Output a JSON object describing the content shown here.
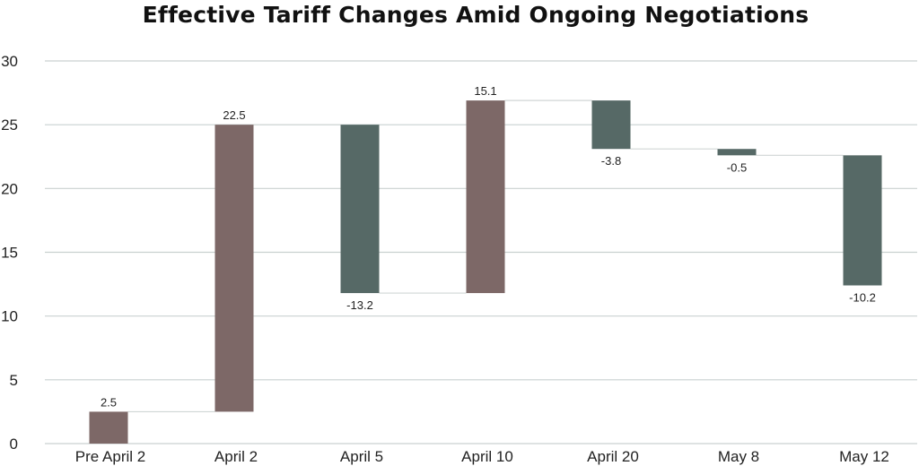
{
  "chart_data": {
    "type": "waterfall",
    "title": "Effective Tariff Changes Amid Ongoing Negotiations",
    "xlabel": "",
    "ylabel": "",
    "ylim": [
      0,
      30
    ],
    "yticks": [
      0,
      5,
      10,
      15,
      20,
      25,
      30
    ],
    "categories": [
      "Pre April 2",
      "April 2",
      "April 5",
      "April 10",
      "April 20",
      "May 8",
      "May 12"
    ],
    "values": [
      2.5,
      22.5,
      -13.2,
      15.1,
      -3.8,
      -0.5,
      -10.2
    ],
    "labels": [
      "2.5",
      "22.5",
      "-13.2",
      "15.1",
      "-3.8",
      "-0.5",
      "-10.2"
    ],
    "colors": {
      "increase": "#7d6867",
      "decrease": "#566966",
      "connector": "#d0d6d5",
      "grid": "#c9d1d0"
    },
    "grid": true
  }
}
